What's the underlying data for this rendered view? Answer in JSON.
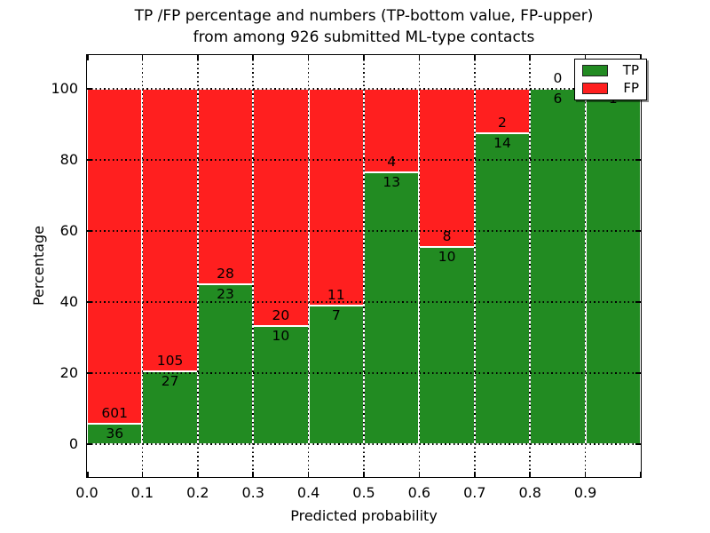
{
  "figure": {
    "title_line1": "TP /FP percentage and numbers (TP-bottom value, FP-upper)",
    "title_line2": "from among 926 submitted ML-type contacts"
  },
  "chart_data": {
    "type": "bar",
    "stacked": true,
    "title": "TP /FP percentage and numbers (TP-bottom value, FP-upper)\nfrom among 926 submitted ML-type contacts",
    "xlabel": "Predicted probability",
    "ylabel": "Percentage",
    "total_contacts": 926,
    "bins": [
      0.0,
      0.1,
      0.2,
      0.3,
      0.4,
      0.5,
      0.6,
      0.7,
      0.8,
      0.9
    ],
    "bin_width": 0.1,
    "x_tick_labels": [
      "0.0",
      "0.1",
      "0.2",
      "0.3",
      "0.4",
      "0.5",
      "0.6",
      "0.7",
      "0.8",
      "0.9"
    ],
    "y_ticks": [
      0,
      20,
      40,
      60,
      80,
      100
    ],
    "y_tick_labels": [
      "0",
      "20",
      "40",
      "60",
      "80",
      "100"
    ],
    "xlim": [
      0.0,
      1.0
    ],
    "ylim": [
      -9.3,
      109.5
    ],
    "grid": true,
    "grid_style": "black dotted",
    "bar_edge_color": "#ffffff",
    "series": [
      {
        "name": "TP",
        "color": "#228b22",
        "counts": [
          36,
          27,
          23,
          10,
          7,
          13,
          10,
          14,
          6,
          1
        ]
      },
      {
        "name": "FP",
        "color": "#ff1f1f",
        "counts": [
          601,
          105,
          28,
          20,
          11,
          4,
          8,
          2,
          0,
          0
        ]
      }
    ],
    "tp_percent": [
      5.65,
      20.45,
      45.1,
      33.33,
      38.89,
      76.47,
      55.56,
      87.5,
      100.0,
      100.0
    ],
    "bar_labels": {
      "tp": [
        "36",
        "27",
        "23",
        "10",
        "7",
        "13",
        "10",
        "14",
        "6",
        "1"
      ],
      "fp": [
        "601",
        "105",
        "28",
        "20",
        "11",
        "4",
        "8",
        "2",
        "0",
        ""
      ]
    },
    "legend": {
      "position": "upper right",
      "entries": [
        {
          "label": "TP",
          "color": "#228b22"
        },
        {
          "label": "FP",
          "color": "#ff1f1f"
        }
      ]
    }
  },
  "colors": {
    "tp_green": "#228b22",
    "fp_red": "#ff1f1f",
    "background": "#ffffff",
    "axis": "#000000"
  }
}
